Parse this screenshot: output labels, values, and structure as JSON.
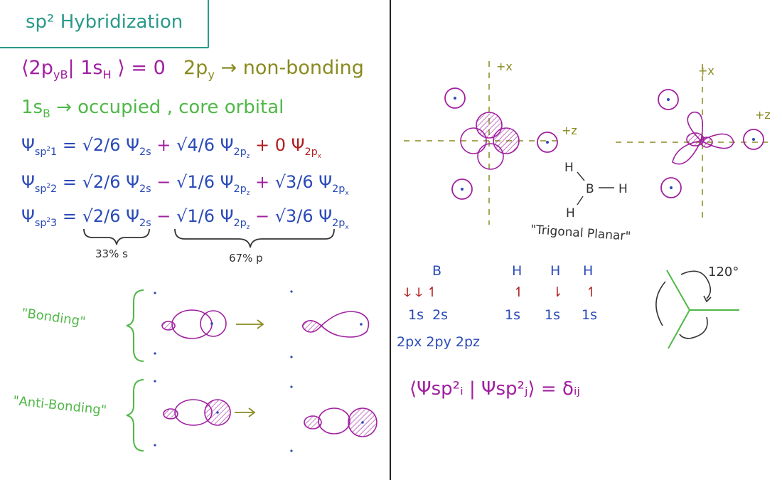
{
  "title": "sp² Hybridization",
  "bracket_eq": "⟨2p",
  "bracket_eq_sub1": "yB",
  "bracket_eq_mid": "| 1s",
  "bracket_eq_sub2": "H",
  "bracket_eq_end": "⟩ = 0",
  "py_label": "2p",
  "py_sub": "y",
  "py_arrow_text": "→ non-bonding",
  "s_b_label": "1s",
  "s_b_sub": "B",
  "s_b_text": "→ occupied , core orbital",
  "eq1": {
    "lhs": "Ψ",
    "lhs_sub": "sp",
    "lhs_sup": "2",
    "lhs_idx": "1",
    "t1": "√2/6 Ψ",
    "t1_sub": "2s",
    "op1": "+",
    "t2": "√4/6 Ψ",
    "t2_sub": "2p",
    "t2_subsub": "z",
    "op2": "+",
    "t3": "0 Ψ",
    "t3_sub": "2p",
    "t3_subsub": "x"
  },
  "eq2": {
    "lhs": "Ψ",
    "lhs_sub": "sp",
    "lhs_sup": "2",
    "lhs_idx": "2",
    "t1": "√2/6 Ψ",
    "t1_sub": "2s",
    "op1": "−",
    "t2": "√1/6 Ψ",
    "t2_sub": "2p",
    "t2_subsub": "z",
    "op2": "+",
    "t3": "√3/6 Ψ",
    "t3_sub": "2p",
    "t3_subsub": "x"
  },
  "eq3": {
    "lhs": "Ψ",
    "lhs_sub": "sp",
    "lhs_sup": "2",
    "lhs_idx": "3",
    "t1": "√2/6 Ψ",
    "t1_sub": "2s",
    "op1": "−",
    "t2": "√1/6 Ψ",
    "t2_sub": "2p",
    "t2_subsub": "z",
    "op2": "−",
    "t3": "√3/6 Ψ",
    "t3_sub": "2p",
    "t3_subsub": "x"
  },
  "s_percent": "33% s",
  "p_percent": "67% p",
  "bonding_label": "\"Bonding\"",
  "antibonding_label": "\"Anti-Bonding\"",
  "axis_x": "+x",
  "axis_z": "+z",
  "axis_x2": "+x",
  "axis_z2": "+z",
  "bh3": {
    "h_top": "H",
    "b": "B",
    "h_right": "H",
    "h_bottom": "H"
  },
  "trigonal": "\"Trigonal Planar\"",
  "config": {
    "b_header": "B",
    "h_headers": [
      "H",
      "H",
      "H"
    ],
    "b_spins": "ↆ ↆ ↿",
    "h_spins": [
      "↿",
      "⇂",
      "↿"
    ],
    "b_orbitals": "1s  2s",
    "h_orbitals": [
      "1s",
      "1s",
      "1s"
    ],
    "p_orbitals": "2px 2py 2pz"
  },
  "angle": "120°",
  "orthonormal": "⟨Ψsp²ᵢ | Ψsp²ⱼ⟩ = δᵢⱼ",
  "colors": {
    "teal": "#2a9a8a",
    "purple": "#a020a0",
    "green": "#50b848",
    "blue": "#2a4ab8",
    "olive": "#8a8a20",
    "red": "#b02020"
  }
}
